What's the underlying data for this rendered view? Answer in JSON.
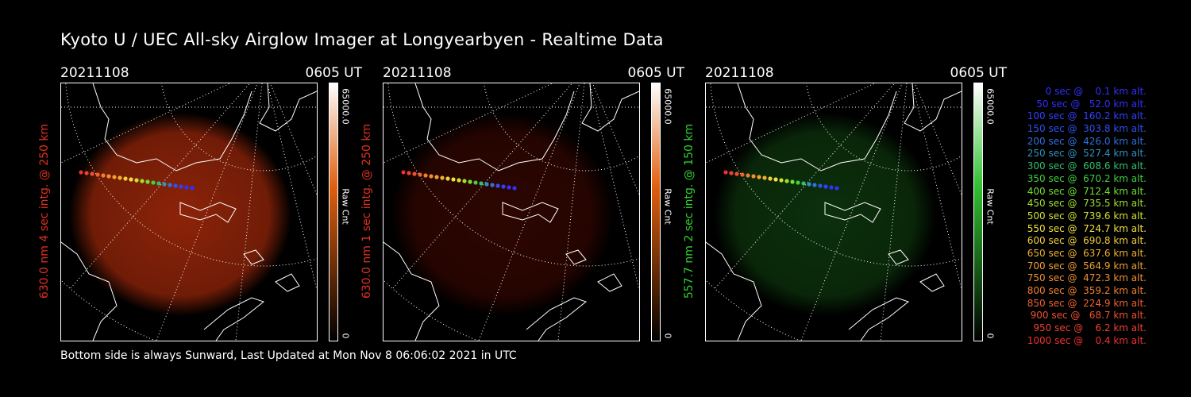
{
  "title": "Kyoto U / UEC All-sky Airglow Imager at Longyearbyen - Realtime Data",
  "footer": "Bottom side is always Sunward, Last Updated at Mon Nov  8 06:06:02 2021 in UTC",
  "panels": [
    {
      "date": "20211108",
      "time": "0605 UT",
      "ylabel": "630.0 nm 4 sec intg. @ 250 km",
      "ylabel_color": "#e03020",
      "cbar_max": "65000.0",
      "cbar_unit": "Raw Cnt",
      "cbar_min": "0",
      "cbar_color": "#e06010",
      "glow": "#ff4010",
      "glow_level": 0.55
    },
    {
      "date": "20211108",
      "time": "0605 UT",
      "ylabel": "630.0 nm 1 sec intg. @ 250 km",
      "ylabel_color": "#e03020",
      "cbar_max": "65000.0",
      "cbar_unit": "Raw Cnt",
      "cbar_min": "0",
      "cbar_color": "#e06010",
      "glow": "#ff2008",
      "glow_level": 0.18
    },
    {
      "date": "20211108",
      "time": "0605 UT",
      "ylabel": "557.7 nm 2 sec intg. @ 150 km",
      "ylabel_color": "#30d030",
      "cbar_max": "65000.0",
      "cbar_unit": "Raw Cnt",
      "cbar_min": "0",
      "cbar_color": "#30c030",
      "glow": "#1a6a1a",
      "glow_level": 0.45
    }
  ],
  "legend": [
    {
      "text": "   0 sec @    0.1 km alt.",
      "color": "#3030ff"
    },
    {
      "text": "  50 sec @   52.0 km alt.",
      "color": "#3030ff"
    },
    {
      "text": " 100 sec @  160.2 km alt.",
      "color": "#3040ff"
    },
    {
      "text": " 150 sec @  303.8 km alt.",
      "color": "#3050f0"
    },
    {
      "text": " 200 sec @  426.0 km alt.",
      "color": "#3070e0"
    },
    {
      "text": " 250 sec @  527.4 km alt.",
      "color": "#3090c0"
    },
    {
      "text": " 300 sec @  608.6 km alt.",
      "color": "#30c070"
    },
    {
      "text": " 350 sec @  670.2 km alt.",
      "color": "#40d040"
    },
    {
      "text": " 400 sec @  712.4 km alt.",
      "color": "#70e030"
    },
    {
      "text": " 450 sec @  735.5 km alt.",
      "color": "#a0e030"
    },
    {
      "text": " 500 sec @  739.6 km alt.",
      "color": "#d0e030"
    },
    {
      "text": " 550 sec @  724.7 km alt.",
      "color": "#f0e040"
    },
    {
      "text": " 600 sec @  690.8 km alt.",
      "color": "#f0d040"
    },
    {
      "text": " 650 sec @  637.6 km alt.",
      "color": "#f0b030"
    },
    {
      "text": " 700 sec @  564.9 km alt.",
      "color": "#f0a030"
    },
    {
      "text": " 750 sec @  472.3 km alt.",
      "color": "#f09030"
    },
    {
      "text": " 800 sec @  359.2 km alt.",
      "color": "#f08030"
    },
    {
      "text": " 850 sec @  224.9 km alt.",
      "color": "#f06030"
    },
    {
      "text": " 900 sec @   68.7 km alt.",
      "color": "#f05030"
    },
    {
      "text": " 950 sec @    6.2 km alt.",
      "color": "#f04030"
    },
    {
      "text": "1000 sec @    0.4 km alt.",
      "color": "#f03030"
    }
  ]
}
